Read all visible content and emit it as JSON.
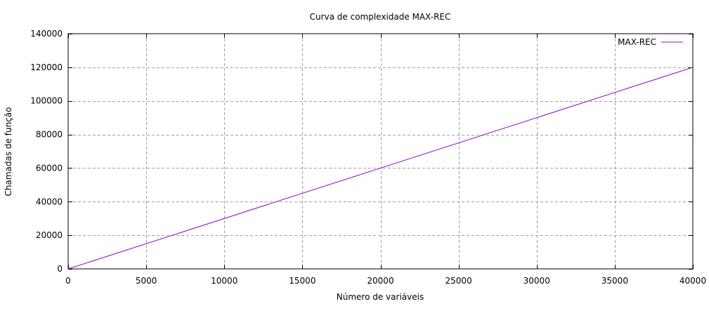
{
  "chart_data": {
    "type": "line",
    "title": "Curva de complexidade MAX-REC",
    "xlabel": "Número de variáveis",
    "ylabel": "Chamadas de função",
    "xlim": [
      0,
      40000
    ],
    "ylim": [
      0,
      140000
    ],
    "x_ticks": [
      0,
      5000,
      10000,
      15000,
      20000,
      25000,
      30000,
      35000,
      40000
    ],
    "y_ticks": [
      0,
      20000,
      40000,
      60000,
      80000,
      100000,
      120000,
      140000
    ],
    "x_tick_labels": [
      "0",
      "5000",
      "10000",
      "15000",
      "20000",
      "25000",
      "30000",
      "35000",
      "40000"
    ],
    "y_tick_labels": [
      "0",
      "20000",
      "40000",
      "60000",
      "80000",
      "100000",
      "120000",
      "140000"
    ],
    "grid": true,
    "legend_position": "top-right",
    "series": [
      {
        "name": "MAX-REC",
        "color": "#9400d3",
        "x": [
          0,
          40000
        ],
        "y": [
          0,
          120000
        ]
      }
    ]
  }
}
